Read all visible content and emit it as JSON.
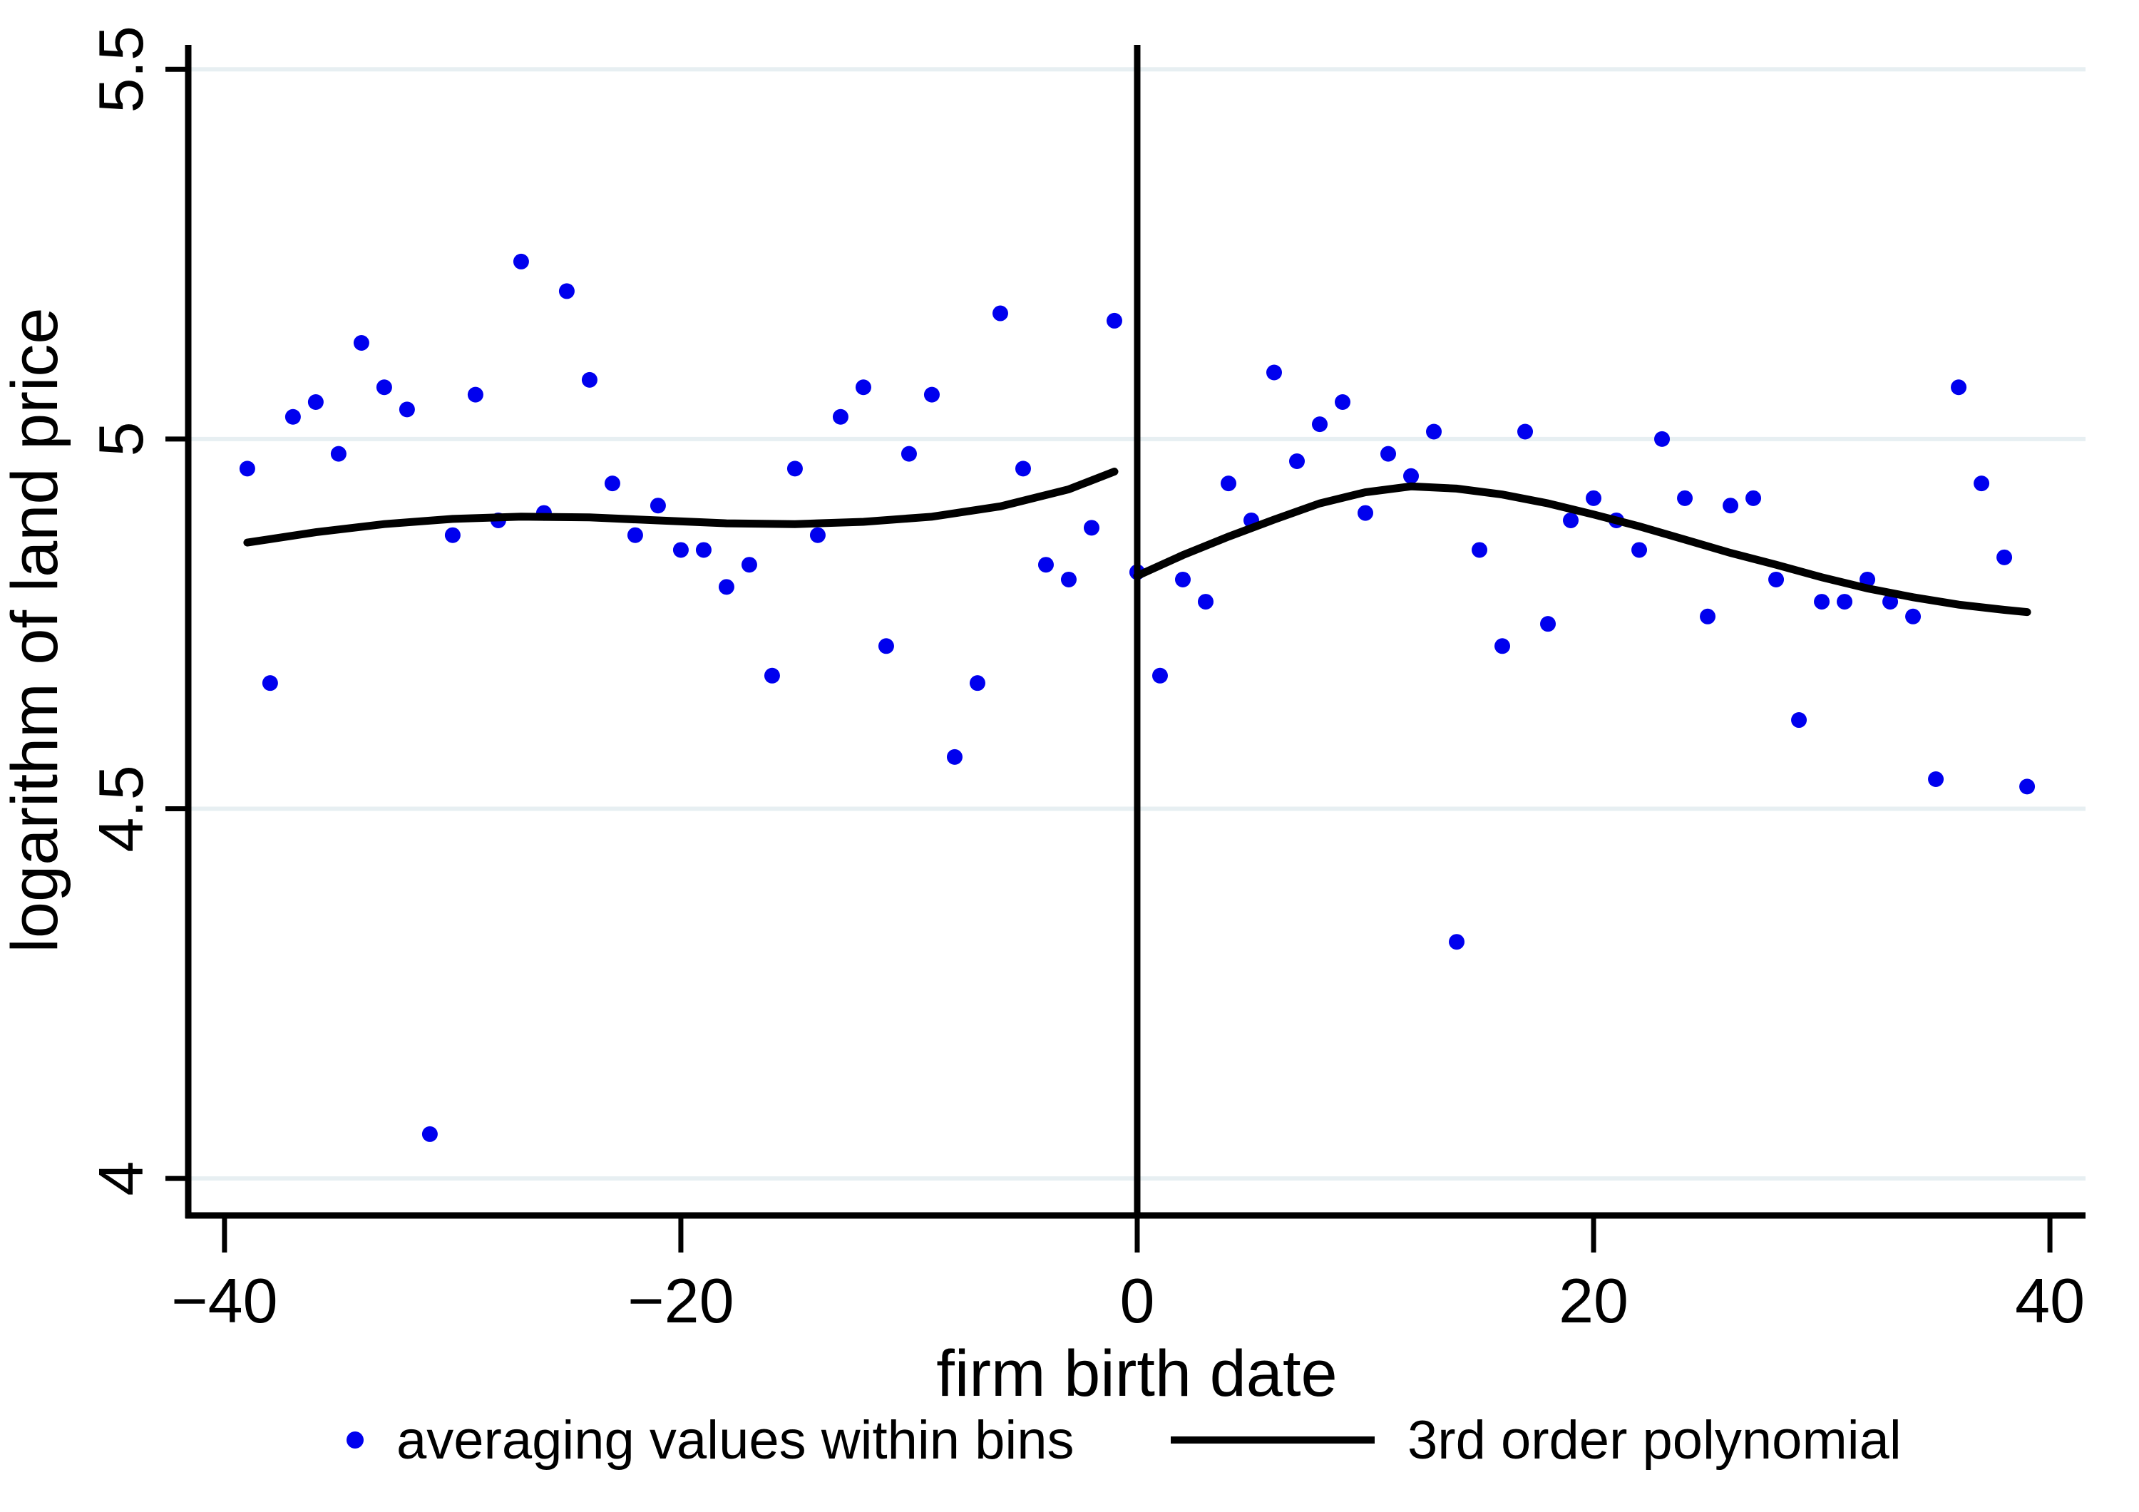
{
  "figure": {
    "background": "#ffffff"
  },
  "chart_data": {
    "type": "scatter",
    "title": "",
    "xlabel": "firm birth date",
    "ylabel": "logarithm of land price",
    "xlim": [
      -41.59,
      41.56
    ],
    "ylim": [
      3.95,
      5.533
    ],
    "xticks": [
      -40,
      -20,
      0,
      20,
      40
    ],
    "yticks": [
      4,
      4.5,
      5,
      5.5
    ],
    "grid": "horizontal-only",
    "legend_position": "bottom-center",
    "cutoff_x": 0,
    "colors": {
      "points": "#0000ee",
      "fit_line": "#000000",
      "cutoff_line": "#000000",
      "grid_line": "#e7eff2",
      "axis": "#000000",
      "text": "#000000"
    },
    "legend": [
      {
        "marker": "dot",
        "label": "averaging values within bins"
      },
      {
        "marker": "line",
        "label": "3rd order polynomial"
      }
    ],
    "series": [
      {
        "name": "averaging values within bins",
        "type": "scatter",
        "points": [
          [
            -39,
            4.96
          ],
          [
            -38,
            4.67
          ],
          [
            -37,
            5.03
          ],
          [
            -36,
            5.05
          ],
          [
            -35,
            4.98
          ],
          [
            -34,
            5.13
          ],
          [
            -33,
            5.07
          ],
          [
            -32,
            5.04
          ],
          [
            -31,
            4.06
          ],
          [
            -30,
            4.87
          ],
          [
            -29,
            5.06
          ],
          [
            -28,
            4.89
          ],
          [
            -27,
            5.24
          ],
          [
            -26,
            4.9
          ],
          [
            -25,
            5.2
          ],
          [
            -24,
            5.08
          ],
          [
            -23,
            4.94
          ],
          [
            -22,
            4.87
          ],
          [
            -21,
            4.91
          ],
          [
            -20,
            4.85
          ],
          [
            -19,
            4.85
          ],
          [
            -18,
            4.8
          ],
          [
            -17,
            4.83
          ],
          [
            -16,
            4.68
          ],
          [
            -15,
            4.96
          ],
          [
            -14,
            4.87
          ],
          [
            -13,
            5.03
          ],
          [
            -12,
            5.07
          ],
          [
            -11,
            4.72
          ],
          [
            -10,
            4.98
          ],
          [
            -9,
            5.06
          ],
          [
            -8,
            4.57
          ],
          [
            -7,
            4.67
          ],
          [
            -6,
            5.17
          ],
          [
            -5,
            4.96
          ],
          [
            -4,
            4.83
          ],
          [
            -3,
            4.81
          ],
          [
            -2,
            4.88
          ],
          [
            -1,
            5.16
          ],
          [
            0,
            4.82
          ],
          [
            1,
            4.68
          ],
          [
            2,
            4.81
          ],
          [
            3,
            4.78
          ],
          [
            4,
            4.94
          ],
          [
            5,
            4.89
          ],
          [
            6,
            5.09
          ],
          [
            7,
            4.97
          ],
          [
            8,
            5.02
          ],
          [
            9,
            5.05
          ],
          [
            10,
            4.9
          ],
          [
            11,
            4.98
          ],
          [
            12,
            4.95
          ],
          [
            13,
            5.01
          ],
          [
            14,
            4.32
          ],
          [
            15,
            4.85
          ],
          [
            16,
            4.72
          ],
          [
            17,
            5.01
          ],
          [
            18,
            4.75
          ],
          [
            19,
            4.89
          ],
          [
            20,
            4.92
          ],
          [
            21,
            4.89
          ],
          [
            22,
            4.85
          ],
          [
            23,
            5.0
          ],
          [
            24,
            4.92
          ],
          [
            25,
            4.76
          ],
          [
            26,
            4.91
          ],
          [
            27,
            4.92
          ],
          [
            28,
            4.81
          ],
          [
            29,
            4.62
          ],
          [
            30,
            4.78
          ],
          [
            31,
            4.78
          ],
          [
            32,
            4.81
          ],
          [
            33,
            4.78
          ],
          [
            34,
            4.76
          ],
          [
            35,
            4.54
          ],
          [
            36,
            5.07
          ],
          [
            37,
            4.94
          ],
          [
            38,
            4.84
          ],
          [
            39,
            4.53
          ]
        ]
      },
      {
        "name": "3rd order polynomial",
        "type": "line",
        "segment": "left",
        "points": [
          [
            -39,
            4.86
          ],
          [
            -36,
            4.874
          ],
          [
            -33,
            4.885
          ],
          [
            -30,
            4.892
          ],
          [
            -27,
            4.895
          ],
          [
            -24,
            4.894
          ],
          [
            -21,
            4.89
          ],
          [
            -18,
            4.886
          ],
          [
            -15,
            4.885
          ],
          [
            -12,
            4.888
          ],
          [
            -9,
            4.895
          ],
          [
            -6,
            4.909
          ],
          [
            -3,
            4.932
          ],
          [
            -1,
            4.956
          ]
        ]
      },
      {
        "name": "3rd order polynomial",
        "type": "line",
        "segment": "right",
        "points": [
          [
            0,
            4.815
          ],
          [
            2,
            4.843
          ],
          [
            4,
            4.868
          ],
          [
            6,
            4.891
          ],
          [
            8,
            4.913
          ],
          [
            10,
            4.928
          ],
          [
            12,
            4.936
          ],
          [
            14,
            4.933
          ],
          [
            16,
            4.925
          ],
          [
            18,
            4.913
          ],
          [
            20,
            4.898
          ],
          [
            22,
            4.882
          ],
          [
            24,
            4.864
          ],
          [
            26,
            4.846
          ],
          [
            28,
            4.83
          ],
          [
            30,
            4.813
          ],
          [
            32,
            4.798
          ],
          [
            34,
            4.786
          ],
          [
            36,
            4.776
          ],
          [
            38,
            4.769
          ],
          [
            39,
            4.766
          ]
        ]
      }
    ]
  }
}
